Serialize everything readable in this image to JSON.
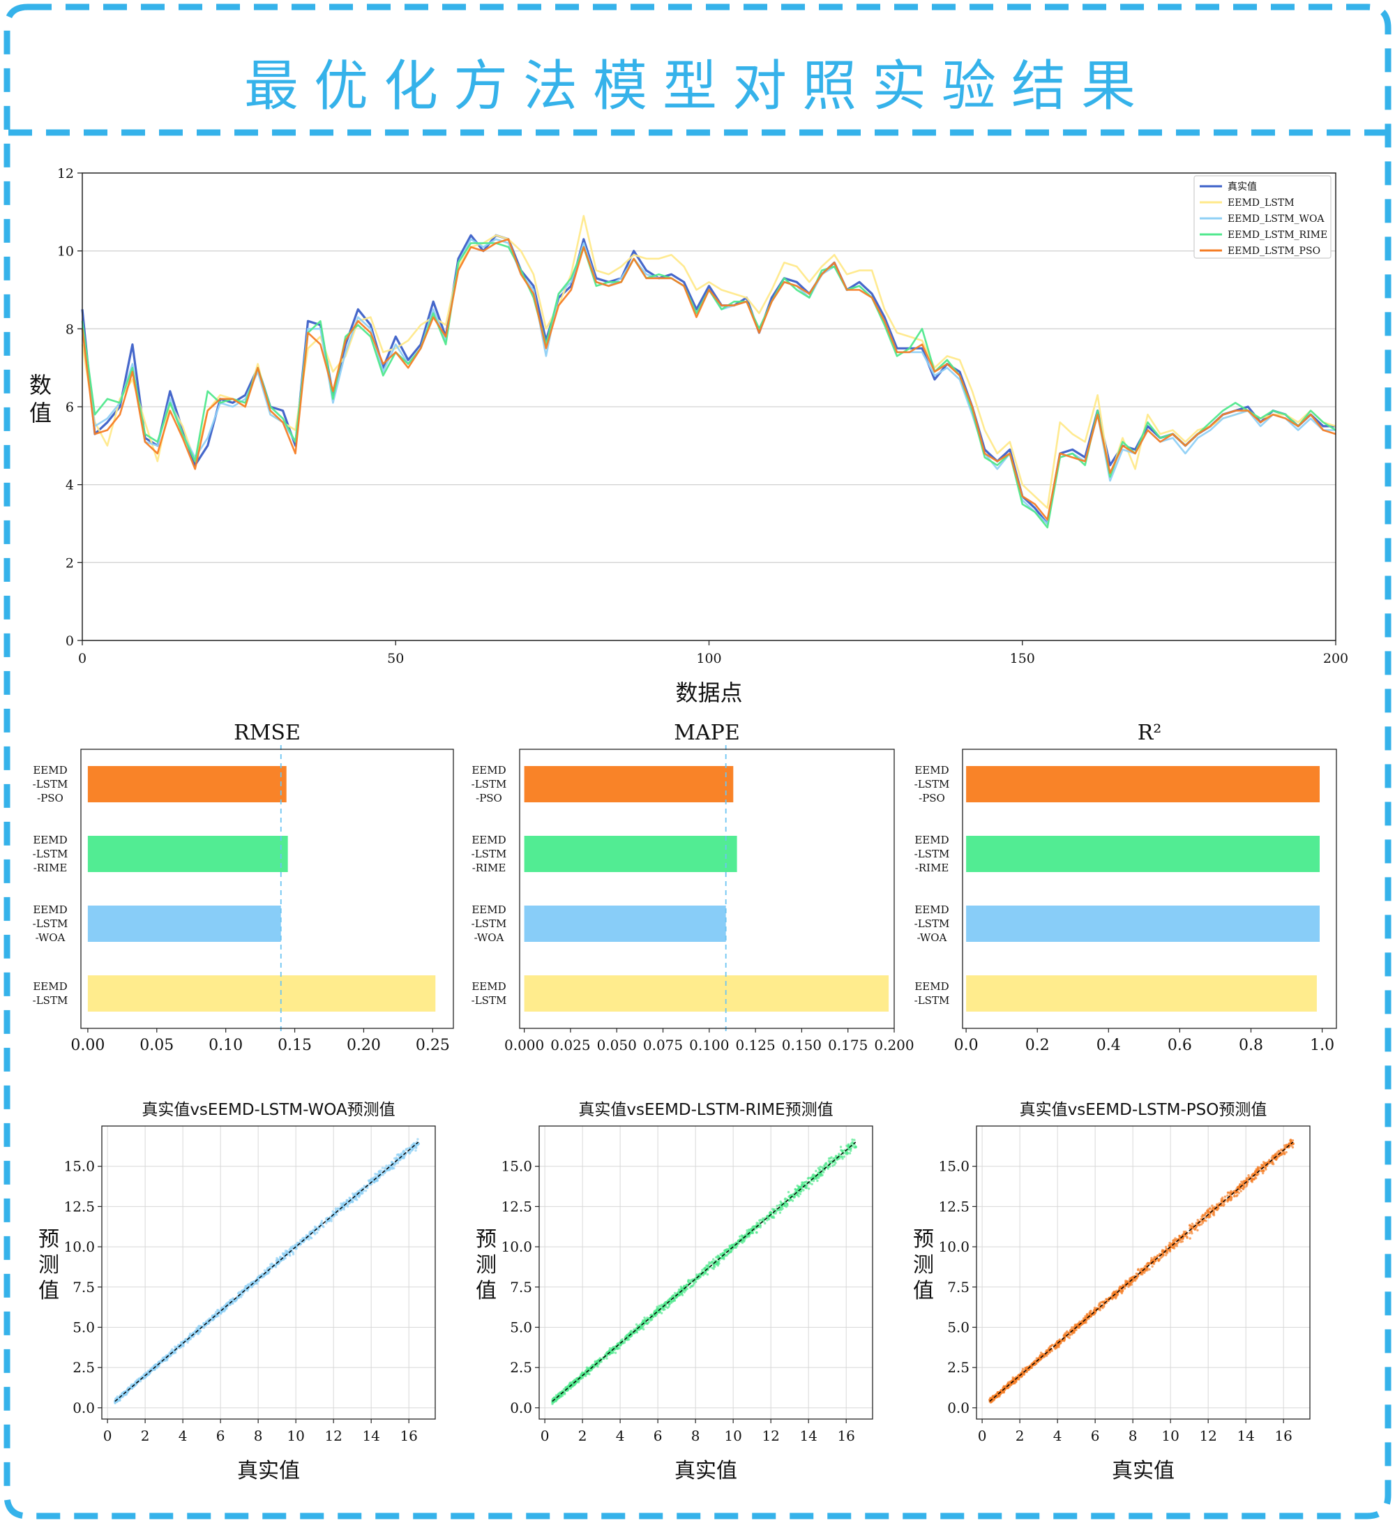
{
  "page": {
    "title": "最优化方法模型对照实验结果",
    "accent_color": "#35b2ea"
  },
  "chart_data": [
    {
      "type": "line",
      "xlabel": "数据点",
      "ylabel": "数值",
      "xlim": [
        0,
        200
      ],
      "ylim": [
        0,
        12
      ],
      "xticks": [
        0,
        50,
        100,
        150,
        200
      ],
      "yticks": [
        0,
        2,
        4,
        6,
        8,
        10,
        12
      ],
      "grid": "horizontal",
      "legend_position": "top-right",
      "x": [
        0,
        2,
        4,
        6,
        8,
        10,
        12,
        14,
        16,
        18,
        20,
        22,
        24,
        26,
        28,
        30,
        32,
        34,
        36,
        38,
        40,
        42,
        44,
        46,
        48,
        50,
        52,
        54,
        56,
        58,
        60,
        62,
        64,
        66,
        68,
        70,
        72,
        74,
        76,
        78,
        80,
        82,
        84,
        86,
        88,
        90,
        92,
        94,
        96,
        98,
        100,
        102,
        104,
        106,
        108,
        110,
        112,
        114,
        116,
        118,
        120,
        122,
        124,
        126,
        128,
        130,
        132,
        134,
        136,
        138,
        140,
        142,
        144,
        146,
        148,
        150,
        152,
        154,
        156,
        158,
        160,
        162,
        164,
        166,
        168,
        170,
        172,
        174,
        176,
        178,
        180,
        182,
        184,
        186,
        188,
        190,
        192,
        194,
        196,
        198,
        200
      ],
      "series": [
        {
          "name": "真实值",
          "color": "#3b5fc8",
          "values": [
            8.5,
            5.3,
            5.6,
            6.0,
            7.6,
            5.2,
            5.0,
            6.4,
            5.4,
            4.5,
            5.0,
            6.2,
            6.1,
            6.3,
            7.0,
            6.0,
            5.9,
            5.0,
            8.2,
            8.1,
            6.3,
            7.6,
            8.5,
            8.1,
            7.0,
            7.8,
            7.2,
            7.6,
            8.7,
            7.8,
            9.8,
            10.4,
            10.0,
            10.4,
            10.3,
            9.5,
            9.1,
            7.7,
            8.8,
            9.1,
            10.3,
            9.3,
            9.2,
            9.3,
            10.0,
            9.5,
            9.3,
            9.4,
            9.2,
            8.5,
            9.1,
            8.6,
            8.6,
            8.8,
            7.9,
            8.8,
            9.3,
            9.2,
            8.9,
            9.4,
            9.7,
            9.0,
            9.2,
            8.9,
            8.3,
            7.5,
            7.5,
            7.5,
            6.7,
            7.1,
            6.9,
            6.0,
            4.9,
            4.6,
            4.9,
            3.7,
            3.4,
            3.0,
            4.8,
            4.9,
            4.7,
            5.9,
            4.5,
            5.0,
            4.9,
            5.5,
            5.2,
            5.3,
            5.0,
            5.3,
            5.5,
            5.8,
            5.9,
            6.0,
            5.6,
            5.9,
            5.8,
            5.5,
            5.8,
            5.5,
            5.5
          ]
        },
        {
          "name": "EEMD_LSTM",
          "color": "#ffe98a",
          "values": [
            7.6,
            5.6,
            5.0,
            6.2,
            6.7,
            5.6,
            4.6,
            6.1,
            5.5,
            4.6,
            5.9,
            6.3,
            6.2,
            6.0,
            7.1,
            5.8,
            5.6,
            5.4,
            7.5,
            7.8,
            6.9,
            7.3,
            8.2,
            8.3,
            7.4,
            7.5,
            7.7,
            8.1,
            8.3,
            8.1,
            9.6,
            10.1,
            10.2,
            10.4,
            10.3,
            10.0,
            9.4,
            8.0,
            8.6,
            9.4,
            10.9,
            9.5,
            9.4,
            9.6,
            9.9,
            9.8,
            9.8,
            9.9,
            9.6,
            9.0,
            9.2,
            9.0,
            8.9,
            8.8,
            8.4,
            9.0,
            9.7,
            9.6,
            9.2,
            9.6,
            9.9,
            9.4,
            9.5,
            9.5,
            8.5,
            7.9,
            7.8,
            7.7,
            7.0,
            7.3,
            7.2,
            6.4,
            5.4,
            4.8,
            5.1,
            4.0,
            3.7,
            3.4,
            5.6,
            5.3,
            5.1,
            6.3,
            4.2,
            5.2,
            4.4,
            5.8,
            5.3,
            5.4,
            5.1,
            5.4,
            5.5,
            5.7,
            5.8,
            5.9,
            5.7,
            5.8,
            5.8,
            5.6,
            5.9,
            5.6,
            5.5
          ]
        },
        {
          "name": "EEMD_LSTM_WOA",
          "color": "#8fd0f5",
          "values": [
            8.0,
            5.5,
            5.7,
            6.1,
            7.1,
            5.1,
            5.0,
            6.2,
            5.3,
            4.7,
            5.2,
            6.1,
            6.0,
            6.2,
            6.9,
            5.8,
            5.6,
            5.1,
            8.0,
            8.0,
            6.1,
            7.4,
            8.3,
            8.0,
            6.9,
            7.6,
            7.1,
            7.5,
            8.5,
            7.7,
            9.7,
            10.3,
            10.1,
            10.3,
            10.2,
            9.4,
            9.0,
            7.3,
            8.9,
            9.2,
            10.2,
            9.2,
            9.1,
            9.3,
            9.8,
            9.4,
            9.3,
            9.3,
            9.1,
            8.4,
            9.0,
            8.5,
            8.6,
            8.7,
            8.0,
            8.7,
            9.2,
            9.1,
            8.8,
            9.4,
            9.6,
            9.0,
            9.1,
            8.8,
            8.2,
            7.4,
            7.4,
            7.4,
            6.8,
            7.0,
            6.7,
            5.8,
            4.8,
            4.4,
            4.8,
            3.6,
            3.3,
            3.0,
            4.7,
            4.8,
            4.6,
            5.8,
            4.1,
            4.9,
            4.8,
            5.4,
            5.1,
            5.2,
            4.8,
            5.2,
            5.4,
            5.7,
            5.8,
            5.9,
            5.5,
            5.8,
            5.7,
            5.4,
            5.7,
            5.4,
            5.4
          ]
        },
        {
          "name": "EEMD_LSTM_RIME",
          "color": "#4fe88c",
          "values": [
            8.2,
            5.8,
            6.2,
            6.1,
            7.0,
            5.3,
            5.1,
            6.1,
            5.3,
            4.6,
            6.4,
            6.1,
            6.2,
            6.1,
            7.0,
            6.0,
            5.7,
            5.1,
            7.9,
            8.2,
            6.2,
            7.8,
            8.1,
            7.8,
            6.8,
            7.4,
            7.1,
            7.5,
            8.4,
            7.6,
            9.7,
            10.2,
            10.2,
            10.2,
            10.1,
            9.5,
            8.8,
            7.6,
            8.9,
            9.3,
            10.1,
            9.1,
            9.2,
            9.2,
            9.8,
            9.3,
            9.4,
            9.3,
            9.1,
            8.4,
            9.0,
            8.5,
            8.7,
            8.7,
            8.0,
            8.7,
            9.3,
            9.0,
            8.8,
            9.5,
            9.6,
            9.0,
            9.1,
            8.8,
            8.1,
            7.3,
            7.5,
            8.0,
            6.9,
            7.2,
            6.8,
            5.9,
            4.7,
            4.5,
            4.8,
            3.5,
            3.3,
            2.9,
            4.7,
            4.8,
            4.5,
            5.9,
            4.2,
            5.1,
            4.8,
            5.6,
            5.2,
            5.3,
            5.0,
            5.3,
            5.6,
            5.9,
            6.1,
            5.9,
            5.7,
            5.9,
            5.8,
            5.5,
            5.9,
            5.6,
            5.4
          ]
        },
        {
          "name": "EEMD_LSTM_PSO",
          "color": "#f57d25",
          "values": [
            8.0,
            5.3,
            5.4,
            5.8,
            6.9,
            5.1,
            4.8,
            5.9,
            5.2,
            4.4,
            5.9,
            6.2,
            6.2,
            6.0,
            7.0,
            5.9,
            5.6,
            4.8,
            7.9,
            7.6,
            6.4,
            7.7,
            8.2,
            7.9,
            7.1,
            7.4,
            7.0,
            7.5,
            8.3,
            7.8,
            9.5,
            10.1,
            10.0,
            10.2,
            10.3,
            9.4,
            8.9,
            7.5,
            8.6,
            9.0,
            10.1,
            9.2,
            9.1,
            9.2,
            9.8,
            9.3,
            9.3,
            9.3,
            9.1,
            8.3,
            9.0,
            8.6,
            8.6,
            8.7,
            7.9,
            8.7,
            9.2,
            9.1,
            8.9,
            9.4,
            9.7,
            9.0,
            9.0,
            8.8,
            8.2,
            7.4,
            7.4,
            7.6,
            6.9,
            7.1,
            6.8,
            6.0,
            4.8,
            4.6,
            4.8,
            3.7,
            3.5,
            3.1,
            4.8,
            4.7,
            4.6,
            5.8,
            4.3,
            5.0,
            4.8,
            5.4,
            5.1,
            5.3,
            5.0,
            5.3,
            5.5,
            5.8,
            5.9,
            5.9,
            5.6,
            5.8,
            5.7,
            5.5,
            5.8,
            5.4,
            5.3
          ]
        }
      ]
    },
    {
      "type": "bar",
      "orientation": "horizontal",
      "title": "RMSE",
      "categories": [
        "EEMD\n-LSTM\n-PSO",
        "EEMD\n-LSTM\n-RIME",
        "EEMD\n-LSTM\n-WOA",
        "EEMD\n-LSTM"
      ],
      "values": [
        0.144,
        0.145,
        0.14,
        0.252
      ],
      "colors": [
        "#f98328",
        "#52ec93",
        "#88cdf8",
        "#ffec8d"
      ],
      "xlim": [
        -0.005,
        0.265
      ],
      "xticks": [
        "0.00",
        "0.05",
        "0.10",
        "0.15",
        "0.20",
        "0.25"
      ],
      "reference_line": 0.14
    },
    {
      "type": "bar",
      "orientation": "horizontal",
      "title": "MAPE",
      "categories": [
        "EEMD\n-LSTM\n-PSO",
        "EEMD\n-LSTM\n-RIME",
        "EEMD\n-LSTM\n-WOA",
        "EEMD\n-LSTM"
      ],
      "values": [
        0.113,
        0.115,
        0.109,
        0.197
      ],
      "colors": [
        "#f98328",
        "#52ec93",
        "#88cdf8",
        "#ffec8d"
      ],
      "xlim": [
        -0.0025,
        0.2
      ],
      "xticks": [
        "0.000",
        "0.025",
        "0.050",
        "0.075",
        "0.100",
        "0.125",
        "0.150",
        "0.175",
        "0.200"
      ],
      "reference_line": 0.109
    },
    {
      "type": "bar",
      "orientation": "horizontal",
      "title": "R²",
      "categories": [
        "EEMD\n-LSTM\n-PSO",
        "EEMD\n-LSTM\n-RIME",
        "EEMD\n-LSTM\n-WOA",
        "EEMD\n-LSTM"
      ],
      "values": [
        0.993,
        0.993,
        0.993,
        0.985
      ],
      "colors": [
        "#f98328",
        "#52ec93",
        "#88cdf8",
        "#ffec8d"
      ],
      "xlim": [
        -0.01,
        1.04
      ],
      "xticks": [
        "0.0",
        "0.2",
        "0.4",
        "0.6",
        "0.8",
        "1.0"
      ]
    },
    {
      "type": "scatter",
      "title": "真实值vsEEMD-LSTM-WOA预测值",
      "xlabel": "真实值",
      "ylabel": "预测值",
      "color": "#8fd0f5",
      "xlim": [
        -0.3,
        17.4
      ],
      "ylim": [
        -0.7,
        17.5
      ],
      "xticks": [
        "0",
        "2",
        "4",
        "6",
        "8",
        "10",
        "12",
        "14",
        "16"
      ],
      "yticks": [
        "0.0",
        "2.5",
        "5.0",
        "7.5",
        "10.0",
        "12.5",
        "15.0"
      ],
      "range": [
        0.4,
        16.5
      ],
      "noise": 0.16,
      "sample_points": [
        [
          0.5,
          0.4
        ],
        [
          2.0,
          1.9
        ],
        [
          4.0,
          3.9
        ],
        [
          6.0,
          5.9
        ],
        [
          8.0,
          7.9
        ],
        [
          10.0,
          9.9
        ],
        [
          12.0,
          12.0
        ],
        [
          13.0,
          12.8
        ],
        [
          16.5,
          16.4
        ]
      ]
    },
    {
      "type": "scatter",
      "title": "真实值vsEEMD-LSTM-RIME预测值",
      "xlabel": "真实值",
      "ylabel": "预测值",
      "color": "#4fe88c",
      "xlim": [
        -0.3,
        17.4
      ],
      "ylim": [
        -0.7,
        17.5
      ],
      "xticks": [
        "0",
        "2",
        "4",
        "6",
        "8",
        "10",
        "12",
        "14",
        "16"
      ],
      "yticks": [
        "0.0",
        "2.5",
        "5.0",
        "7.5",
        "10.0",
        "12.5",
        "15.0"
      ],
      "range": [
        0.4,
        16.5
      ],
      "noise": 0.2,
      "sample_points": [
        [
          0.5,
          0.6
        ],
        [
          2.0,
          2.1
        ],
        [
          4.0,
          4.0
        ],
        [
          6.0,
          6.1
        ],
        [
          8.0,
          8.0
        ],
        [
          10.0,
          10.1
        ],
        [
          12.0,
          12.1
        ],
        [
          13.5,
          13.7
        ],
        [
          16.5,
          16.2
        ]
      ]
    },
    {
      "type": "scatter",
      "title": "真实值vsEEMD-LSTM-PSO预测值",
      "xlabel": "真实值",
      "ylabel": "预测值",
      "color": "#f57d25",
      "xlim": [
        -0.3,
        17.4
      ],
      "ylim": [
        -0.7,
        17.5
      ],
      "xticks": [
        "0",
        "2",
        "4",
        "6",
        "8",
        "10",
        "12",
        "14",
        "16"
      ],
      "yticks": [
        "0.0",
        "2.5",
        "5.0",
        "7.5",
        "10.0",
        "12.5",
        "15.0"
      ],
      "range": [
        0.4,
        16.5
      ],
      "noise": 0.2,
      "sample_points": [
        [
          0.5,
          0.5
        ],
        [
          2.0,
          2.0
        ],
        [
          4.0,
          4.1
        ],
        [
          6.0,
          6.0
        ],
        [
          8.0,
          8.1
        ],
        [
          10.0,
          10.0
        ],
        [
          12.0,
          12.2
        ],
        [
          13.5,
          13.4
        ],
        [
          16.5,
          16.4
        ]
      ]
    }
  ]
}
